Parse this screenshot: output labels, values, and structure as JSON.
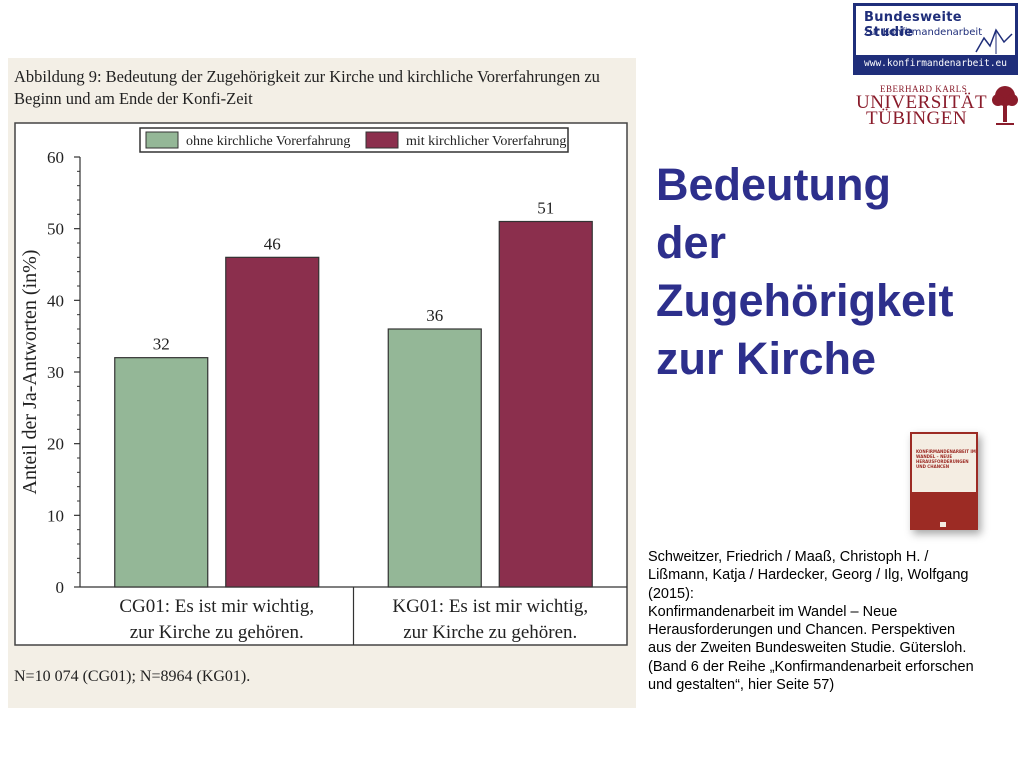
{
  "figure": {
    "caption_line1": "Abbildung 9: Bedeutung der Zugehörigkeit zur Kirche und kirchliche Vorerfahrungen zu",
    "caption_line2": "Beginn und am Ende der Konfi-Zeit",
    "footnote": "N=10 074 (CG01); N=8964 (KG01)."
  },
  "chart_data": {
    "type": "bar",
    "categories": [
      [
        "CG01: Es ist mir wichtig,",
        "zur Kirche zu gehören."
      ],
      [
        "KG01: Es ist mir wichtig,",
        "zur Kirche zu gehören."
      ]
    ],
    "series": [
      {
        "name": "ohne kirchliche Vorerfahrung",
        "values": [
          32,
          36
        ],
        "color": "#94b797"
      },
      {
        "name": "mit kirchlicher Vorerfahrung",
        "values": [
          46,
          51
        ],
        "color": "#8b2f4d"
      }
    ],
    "ylabel": "Anteil der Ja-Antworten (in%)",
    "ylim": [
      0,
      60
    ],
    "yticks": [
      0,
      10,
      20,
      30,
      40,
      50,
      60
    ],
    "legend_position": "top"
  },
  "logo": {
    "title": "Bundesweite Studie",
    "subtitle": "zur Konfirmandenarbeit",
    "url": "www.konfirmandenarbeit.eu"
  },
  "university": {
    "small": "EBERHARD KARLS",
    "line1": "UNIVERSITÄT",
    "line2": "TÜBINGEN"
  },
  "slide": {
    "title_lines": [
      "Bedeutung",
      "der",
      "Zugehörigkeit",
      "zur Kirche"
    ]
  },
  "book": {
    "title": "KONFIRMANDENARBEIT IM WANDEL – NEUE HERAUSFORDERUNGEN UND CHANCEN"
  },
  "citation": {
    "lines": [
      "Schweitzer, Friedrich / Maaß, Christoph H. /",
      "Lißmann, Katja / Hardecker, Georg / Ilg, Wolfgang",
      "(2015):",
      "Konfirmandenarbeit im Wandel – Neue",
      "Herausforderungen und Chancen. Perspektiven",
      "aus der Zweiten Bundesweiten Studie. Gütersloh.",
      "(Band 6 der Reihe „Konfirmandenarbeit erforschen",
      "und gestalten“, hier Seite 57)"
    ]
  },
  "colors": {
    "title_blue": "#2d2f8c",
    "logo_blue": "#1f2e7a",
    "university_red": "#8a1c2b",
    "panel_bg": "#f3efe6"
  }
}
